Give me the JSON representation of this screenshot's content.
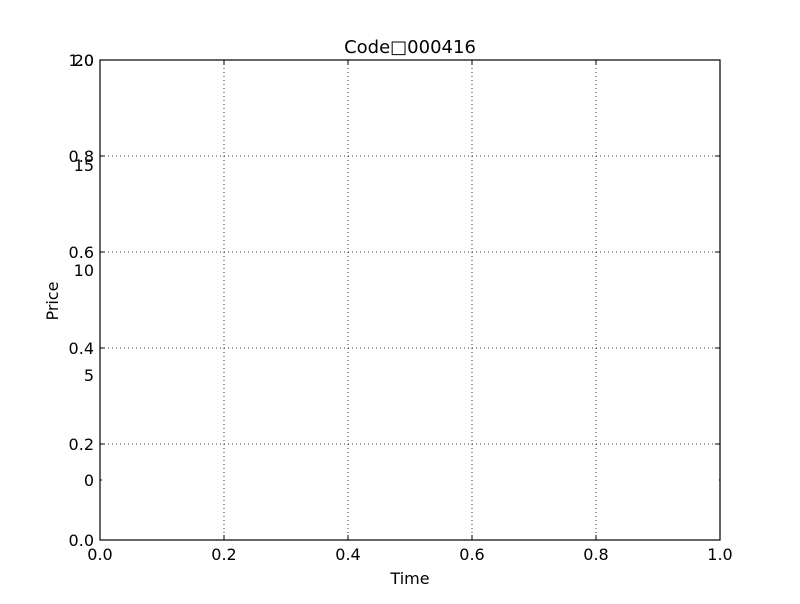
{
  "chart_data": {
    "type": "line",
    "title": "Code□000416",
    "xlabel": "Time",
    "ylabel": "Price",
    "xlim": [
      0.0,
      1.0
    ],
    "ylim": [
      0.0,
      1.0
    ],
    "x_ticks": [
      "0.0",
      "0.2",
      "0.4",
      "0.6",
      "0.8",
      "1.0"
    ],
    "y_ticks": [
      "0.0",
      "0.2",
      "0.4",
      "0.6",
      "0.8",
      "1.0"
    ],
    "secondary_y_ticks": [
      "0",
      "5",
      "10",
      "15",
      "20"
    ],
    "secondary_ylim": [
      0,
      20
    ],
    "grid": true,
    "series": []
  }
}
